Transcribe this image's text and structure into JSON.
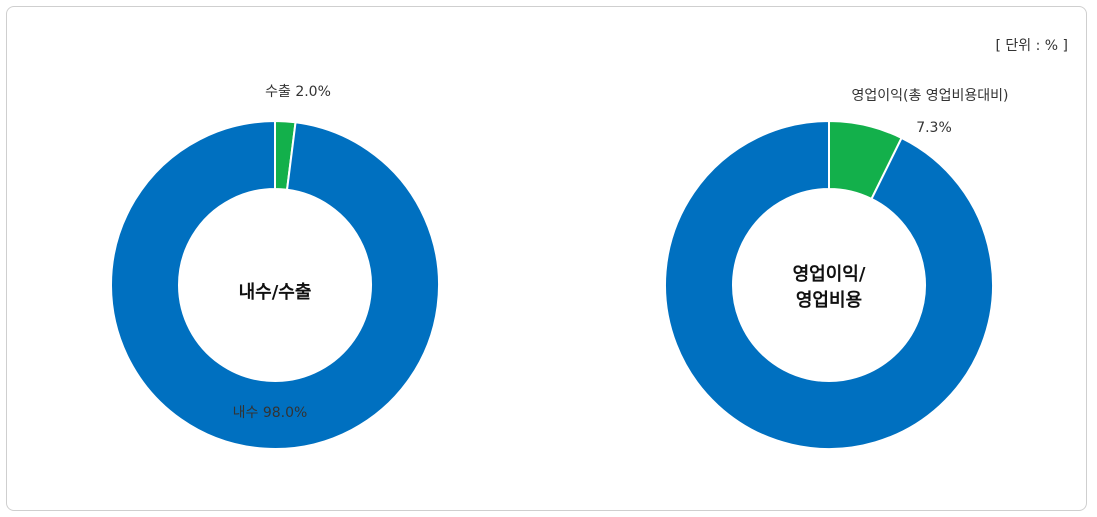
{
  "unit_label": "[ 단위 : % ]",
  "colors": {
    "blue": "#0070c0",
    "green": "#13b04b",
    "panel_border": "#cfcfcf"
  },
  "chart_data": [
    {
      "type": "pie",
      "center_title": [
        "내수/수출"
      ],
      "slices": [
        {
          "label": "수출",
          "value": 2.0,
          "label_text": "수출 2.0%",
          "color": "#13b04b"
        },
        {
          "label": "내수",
          "value": 98.0,
          "label_text": "내수 98.0%",
          "color": "#0070c0"
        }
      ]
    },
    {
      "type": "pie",
      "center_title": [
        "영업이익/",
        "영업비용"
      ],
      "slices": [
        {
          "label": "영업이익(총 영업비용대비)",
          "value": 7.3,
          "label_text": "영업이익(총 영업비용대비)",
          "value_text": "7.3%",
          "color": "#13b04b"
        },
        {
          "label": "",
          "value": 92.7,
          "color": "#0070c0"
        }
      ]
    }
  ]
}
